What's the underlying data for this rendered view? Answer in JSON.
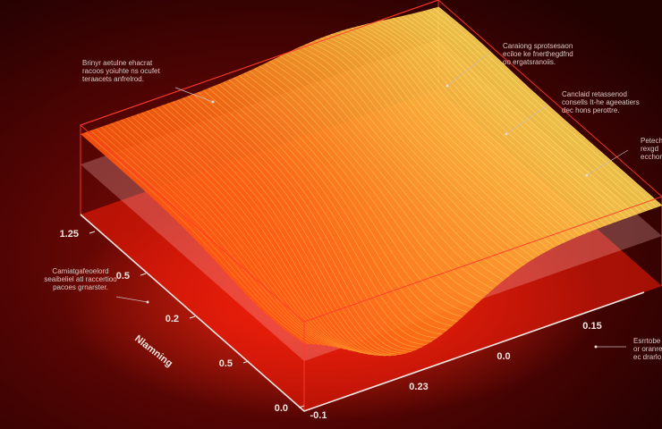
{
  "annotations": [
    {
      "lines": [
        "Brinyr aetulne ehacrat",
        "racoos yoiuhte ns ocufet",
        "teraacets anfrelrod."
      ]
    },
    {
      "lines": [
        "Caraiong sprotsesaon",
        "eciloe ke fnerthegdfnd",
        "oo ergatsranoiis."
      ]
    },
    {
      "lines": [
        "Canclaid retassenod",
        "consells It-he ageeatiers",
        "dec hons perottre."
      ]
    },
    {
      "lines": [
        "Petech",
        "rexgd",
        "ecchor"
      ]
    },
    {
      "lines": [
        "Camiatgafeoelord",
        "seaibeliel atl raccertioo",
        "pacoes grnarster."
      ]
    },
    {
      "lines": [
        "Esrrtobe",
        "or oranre",
        "ec drarlo"
      ]
    }
  ],
  "axis_label": "Nlamning",
  "tick_labels": {
    "left": [
      "1.25",
      "0.5",
      "0.2",
      "0.5",
      "0.0"
    ],
    "front": [
      "-0.1",
      "0.23",
      "0.0",
      "0.15"
    ]
  }
}
